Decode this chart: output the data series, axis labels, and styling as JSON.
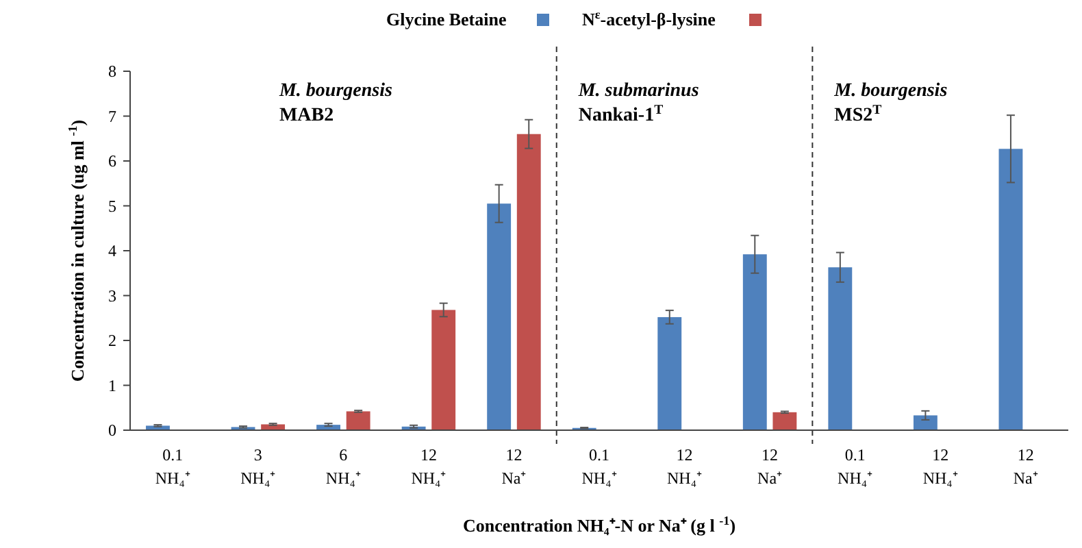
{
  "chart_data": {
    "type": "bar",
    "categories": [
      "0.1\nNH₄⁺",
      "3\nNH₄⁺",
      "6\nNH₄⁺",
      "12\nNH₄⁺",
      "12\nNa⁺",
      "0.1\nNH₄⁺",
      "12\nNH₄⁺",
      "12\nNa⁺",
      "0.1\nNH₄⁺",
      "12\nNH₄⁺",
      "12\nNa⁺"
    ],
    "series": [
      {
        "name": "Glycine Betaine",
        "color": "#4f81bd",
        "values": [
          0.1,
          0.07,
          0.12,
          0.08,
          5.05,
          0.05,
          2.52,
          3.92,
          3.63,
          0.33,
          6.27
        ],
        "errors": [
          0.02,
          0.02,
          0.03,
          0.03,
          0.42,
          0.01,
          0.15,
          0.42,
          0.33,
          0.1,
          0.75
        ]
      },
      {
        "name": "N$^{ε}$-acetyl-β-lysine",
        "color": "#c0504d",
        "values": [
          null,
          0.13,
          0.42,
          2.68,
          6.6,
          null,
          null,
          0.4,
          null,
          null,
          null
        ],
        "errors": [
          null,
          0.02,
          0.02,
          0.15,
          0.32,
          null,
          null,
          0.02,
          null,
          null,
          null
        ]
      }
    ],
    "ylim": [
      0,
      8
    ],
    "yticks": [
      0,
      1,
      2,
      3,
      4,
      5,
      6,
      7,
      8
    ],
    "ylabel": "Concentration in culture (ug ml $^{-1}$)",
    "xlabel": "Concentration NH₄⁺-N or Na⁺ (g l $^{-1}$)",
    "annotations": [
      "M. bourgensis\nMAB2",
      "M. submarinus\nNankai-1$^{T}$",
      "M. bourgensis\nMS2$^{T}$"
    ],
    "legend": "top",
    "grid": false
  }
}
